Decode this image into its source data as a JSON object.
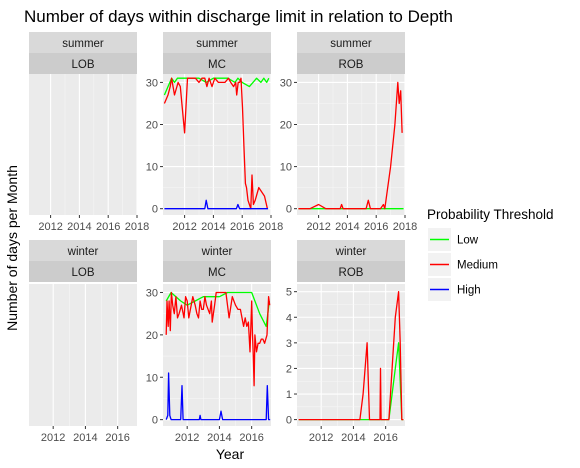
{
  "chart_data": {
    "type": "line",
    "title": "Number of days within discharge limit in relation to Depth",
    "xlabel": "Year",
    "ylabel": "Number of days per Month",
    "legend": {
      "title": "Probability Threshold",
      "position": "right",
      "entries": [
        {
          "name": "Low",
          "color": "#00ff00"
        },
        {
          "name": "Medium",
          "color": "#ff0000"
        },
        {
          "name": "High",
          "color": "#0000ff"
        }
      ]
    },
    "facets": [
      {
        "season": "summer",
        "site": "LOB",
        "xlim": [
          2010.5,
          2018
        ],
        "x_ticks": [
          "2012",
          "2014",
          "2016",
          "2018"
        ],
        "ylim": [
          0,
          32
        ],
        "y_ticks": [],
        "series": []
      },
      {
        "season": "summer",
        "site": "MC",
        "xlim": [
          2010.5,
          2018
        ],
        "x_ticks": [
          "2012",
          "2014",
          "2016",
          "2018"
        ],
        "ylim": [
          -1.5,
          32
        ],
        "y_ticks": [
          "0",
          "10",
          "20",
          "30"
        ],
        "series": [
          {
            "name": "Low",
            "x": [
              2010.6,
              2011.1,
              2011.3,
              2011.5,
              2012.0,
              2012.5,
              2013.0,
              2013.5,
              2014.0,
              2014.5,
              2015.0,
              2015.5,
              2015.7,
              2016.0,
              2016.5,
              2017.0,
              2017.3,
              2017.5,
              2017.7,
              2017.85
            ],
            "y": [
              27,
              31,
              30,
              31,
              31,
              31,
              31,
              30,
              31,
              31,
              31,
              30,
              31,
              30,
              29,
              31,
              30,
              31,
              30,
              31
            ]
          },
          {
            "name": "Medium",
            "x": [
              2010.6,
              2010.85,
              2011.0,
              2011.1,
              2011.3,
              2011.55,
              2011.7,
              2012.0,
              2012.2,
              2012.5,
              2012.75,
              2013.0,
              2013.2,
              2013.4,
              2013.55,
              2013.7,
              2013.9,
              2014.1,
              2014.35,
              2014.55,
              2014.8,
              2015.05,
              2015.2,
              2015.4,
              2015.55,
              2015.62,
              2015.72,
              2015.82,
              2015.92,
              2016.02,
              2016.12,
              2016.22,
              2016.3,
              2016.4,
              2016.5,
              2016.6,
              2016.68,
              2016.78,
              2016.9,
              2017.15,
              2017.55,
              2017.75
            ],
            "y": [
              25,
              27,
              29,
              31,
              27,
              30,
              29,
              18,
              31,
              31,
              31,
              30,
              31,
              31,
              29,
              31,
              29,
              31,
              30,
              30,
              30,
              31,
              30,
              29,
              30,
              27,
              30,
              30,
              31,
              24,
              15,
              6,
              5,
              2,
              1,
              0,
              8,
              1,
              2,
              5,
              3,
              0
            ]
          },
          {
            "name": "High",
            "x": [
              2010.6,
              2013.0,
              2013.4,
              2013.5,
              2013.62,
              2015.1,
              2015.6,
              2015.7,
              2015.82,
              2017.8
            ],
            "y": [
              0,
              0,
              0,
              2,
              0,
              0,
              0,
              1,
              0,
              0
            ]
          }
        ]
      },
      {
        "season": "summer",
        "site": "ROB",
        "xlim": [
          2010.5,
          2018
        ],
        "x_ticks": [
          "2012",
          "2014",
          "2016",
          "2018"
        ],
        "ylim": [
          -1.5,
          32
        ],
        "y_ticks": [
          "0",
          "10",
          "20",
          "30"
        ],
        "series": [
          {
            "name": "Low",
            "x": [
              2010.6,
              2017.9
            ],
            "y": [
              0,
              0
            ]
          },
          {
            "name": "Medium",
            "x": [
              2010.6,
              2011.4,
              2012.0,
              2012.5,
              2013.5,
              2013.6,
              2013.7,
              2015.0,
              2015.3,
              2015.45,
              2015.6,
              2016.3,
              2016.5,
              2016.6,
              2017.0,
              2017.3,
              2017.5,
              2017.6,
              2017.7,
              2017.8
            ],
            "y": [
              0,
              0,
              1,
              0,
              0,
              1,
              0,
              0,
              0,
              2,
              0,
              0,
              1,
              0,
              10,
              20,
              30,
              25,
              28,
              18
            ]
          }
        ]
      },
      {
        "season": "winter",
        "site": "LOB",
        "xlim": [
          2010.5,
          2017.2
        ],
        "x_ticks": [
          "2012",
          "2014",
          "2016"
        ],
        "ylim": [
          0,
          32
        ],
        "y_ticks": [],
        "series": []
      },
      {
        "season": "winter",
        "site": "MC",
        "xlim": [
          2010.5,
          2017.2
        ],
        "x_ticks": [
          "2012",
          "2014",
          "2016"
        ],
        "ylim": [
          -1.5,
          32
        ],
        "y_ticks": [
          "0",
          "10",
          "20",
          "30"
        ],
        "series": [
          {
            "name": "Low",
            "x": [
              2010.7,
              2011.0,
              2011.3,
              2011.6,
              2012.0,
              2012.5,
              2013.0,
              2013.5,
              2014.0,
              2014.5,
              2015.0,
              2015.5,
              2016.0,
              2016.5,
              2016.9,
              2017.1
            ],
            "y": [
              28,
              30,
              29,
              28,
              27,
              28,
              29,
              29,
              29,
              30,
              30,
              30,
              30,
              25,
              22,
              28
            ]
          },
          {
            "name": "Medium",
            "x": [
              2010.7,
              2010.75,
              2010.82,
              2010.88,
              2010.95,
              2011.02,
              2011.1,
              2011.2,
              2011.3,
              2011.4,
              2011.5,
              2011.65,
              2011.8,
              2011.9,
              2012.0,
              2012.1,
              2012.2,
              2012.35,
              2012.5,
              2012.6,
              2012.7,
              2012.8,
              2012.9,
              2013.0,
              2013.1,
              2013.2,
              2013.4,
              2013.5,
              2013.55,
              2013.7,
              2013.8,
              2014.0,
              2014.2,
              2014.4,
              2014.6,
              2014.8,
              2015.0,
              2015.15,
              2015.3,
              2015.4,
              2015.5,
              2015.6,
              2015.7,
              2015.8,
              2015.9,
              2016.0,
              2016.05,
              2016.1,
              2016.15,
              2016.2,
              2016.3,
              2016.4,
              2016.5,
              2016.6,
              2016.7,
              2016.8,
              2016.95,
              2017.05,
              2017.12
            ],
            "y": [
              20,
              28,
              22,
              28,
              21,
              30,
              27,
              25,
              29,
              24,
              25,
              27,
              24,
              29,
              28,
              24,
              26,
              29,
              27,
              25,
              24,
              28,
              26,
              26,
              29,
              27,
              25,
              28,
              23,
              27,
              30,
              30,
              30,
              30,
              24,
              29,
              27,
              26,
              26,
              24,
              22,
              24,
              22,
              23,
              16,
              28,
              20,
              15,
              8,
              20,
              16,
              18,
              18,
              19,
              19,
              18,
              20,
              29,
              27
            ]
          },
          {
            "name": "High",
            "x": [
              2010.7,
              2010.8,
              2010.85,
              2010.92,
              2011.0,
              2011.6,
              2011.68,
              2011.75,
              2012.0,
              2012.75,
              2012.8,
              2012.85,
              2013.0,
              2014.0,
              2014.1,
              2014.2,
              2016.8,
              2016.9,
              2016.97,
              2017.05,
              2017.15
            ],
            "y": [
              0,
              1,
              11,
              1,
              0,
              0,
              8,
              0,
              0,
              0,
              1,
              0,
              0,
              0,
              2,
              0,
              0,
              0,
              8,
              0,
              0
            ]
          }
        ]
      },
      {
        "season": "winter",
        "site": "ROB",
        "xlim": [
          2010.5,
          2017.2
        ],
        "x_ticks": [
          "2012",
          "2014",
          "2016"
        ],
        "ylim": [
          -0.25,
          5.3
        ],
        "y_ticks": [
          "0",
          "1",
          "2",
          "3",
          "4",
          "5"
        ],
        "series": [
          {
            "name": "Low",
            "x": [
              2010.6,
              2015.7,
              2016.0,
              2016.2,
              2016.4,
              2016.6,
              2016.8,
              2017.0,
              2017.1
            ],
            "y": [
              0,
              0,
              0,
              0,
              1,
              2,
              3,
              0,
              0
            ]
          },
          {
            "name": "Medium",
            "x": [
              2010.6,
              2014.2,
              2014.4,
              2014.6,
              2014.85,
              2015.0,
              2015.2,
              2015.5,
              2015.65,
              2015.68,
              2015.72,
              2015.8,
              2016.0,
              2016.2,
              2016.4,
              2016.6,
              2016.8,
              2016.9,
              2017.0,
              2017.1
            ],
            "y": [
              0,
              0,
              0,
              1,
              3,
              0,
              0,
              0,
              0,
              2,
              0,
              0,
              0,
              0,
              2,
              4,
              5,
              3,
              0,
              0
            ]
          }
        ]
      }
    ]
  }
}
